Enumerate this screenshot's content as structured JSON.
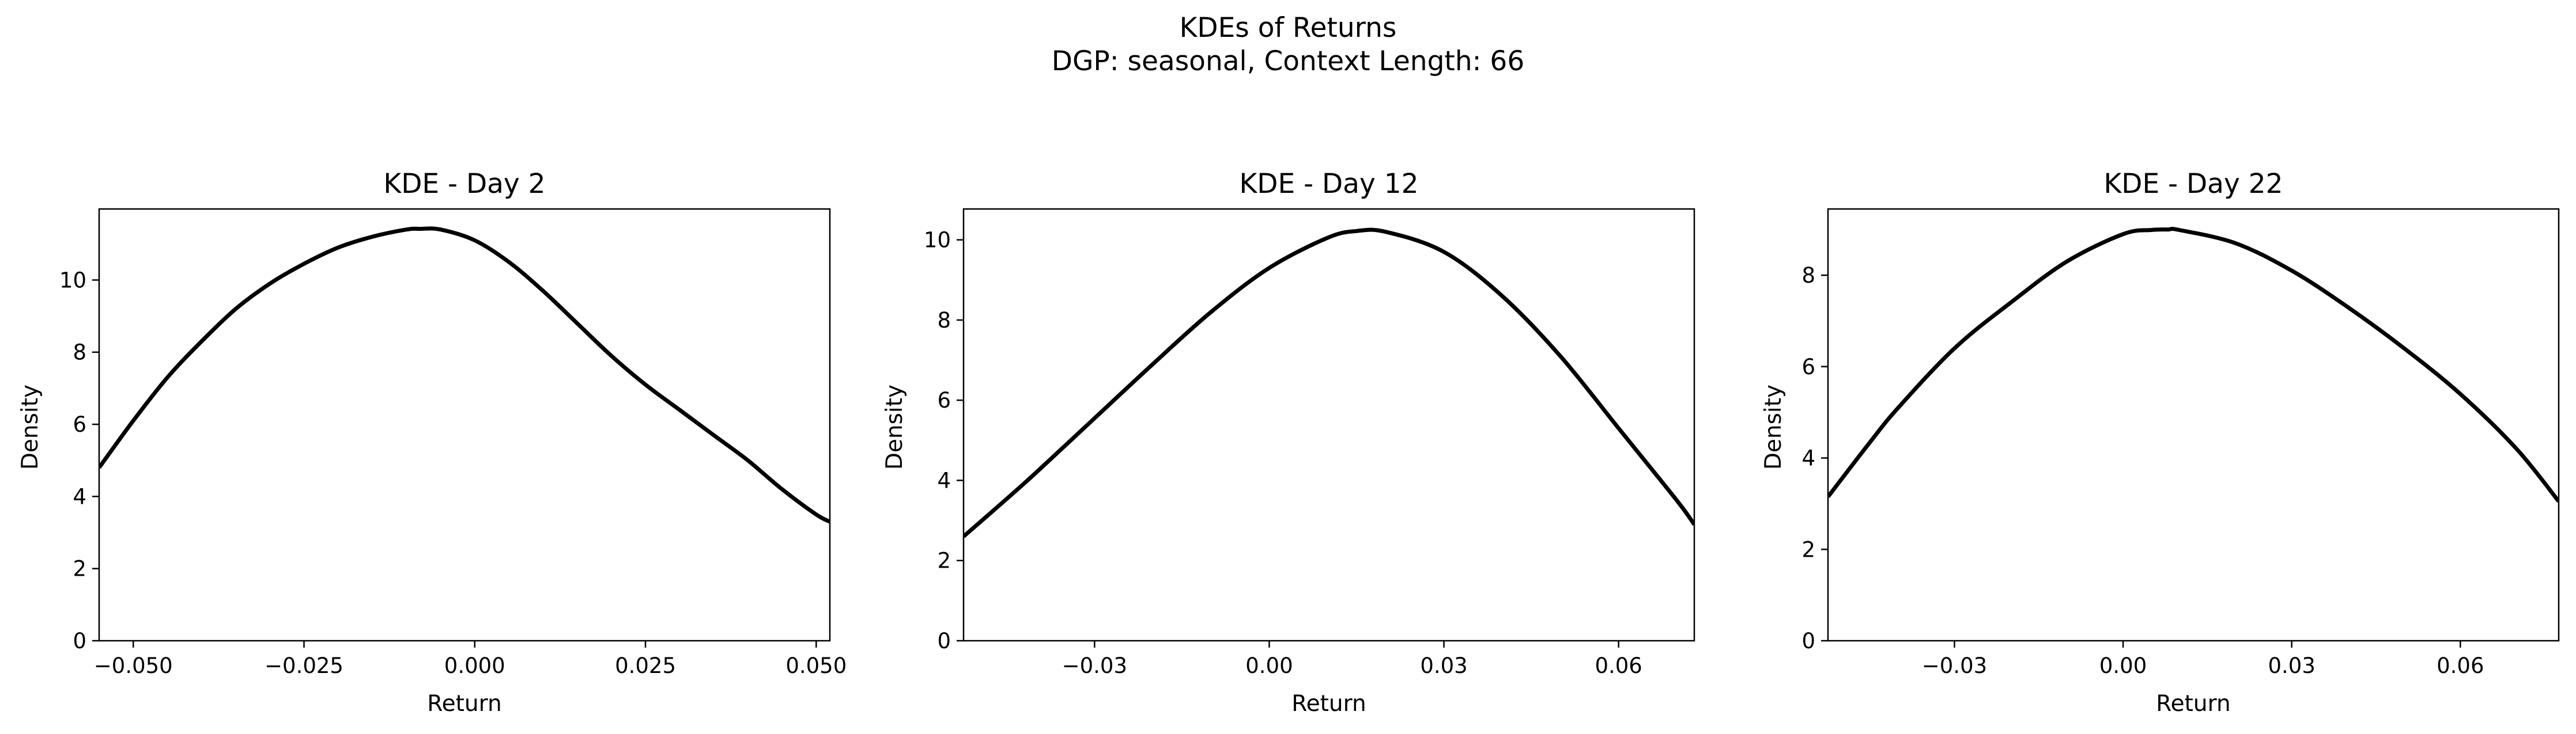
{
  "figure": {
    "title_line1": "KDEs of Returns",
    "title_line2": "DGP: seasonal, Context Length: 66"
  },
  "colors": {
    "line": "#000000",
    "axes": "#000000",
    "background": "#ffffff"
  },
  "chart_data": [
    {
      "type": "line",
      "title": "KDE - Day 2",
      "xlabel": "Return",
      "ylabel": "Density",
      "xlim": [
        -0.055,
        0.052
      ],
      "ylim": [
        0,
        11.97
      ],
      "xticks": [
        -0.05,
        -0.025,
        0.0,
        0.025,
        0.05
      ],
      "xtick_labels": [
        "−0.050",
        "−0.025",
        "0.000",
        "0.025",
        "0.050"
      ],
      "yticks": [
        0,
        2,
        4,
        6,
        8,
        10
      ],
      "ytick_labels": [
        "0",
        "2",
        "4",
        "6",
        "8",
        "10"
      ],
      "grid": false,
      "series": [
        {
          "x": [
            -0.055,
            -0.05,
            -0.045,
            -0.04,
            -0.035,
            -0.03,
            -0.025,
            -0.02,
            -0.015,
            -0.01,
            -0.008,
            -0.005,
            0.0,
            0.005,
            0.01,
            0.015,
            0.02,
            0.025,
            0.03,
            0.035,
            0.04,
            0.045,
            0.05,
            0.052
          ],
          "y": [
            4.8,
            6.1,
            7.3,
            8.3,
            9.2,
            9.9,
            10.45,
            10.9,
            11.2,
            11.4,
            11.42,
            11.4,
            11.1,
            10.5,
            9.7,
            8.8,
            7.9,
            7.1,
            6.4,
            5.7,
            5.0,
            4.2,
            3.5,
            3.3
          ]
        }
      ]
    },
    {
      "type": "line",
      "title": "KDE - Day 12",
      "xlabel": "Return",
      "ylabel": "Density",
      "xlim": [
        -0.0525,
        0.073
      ],
      "ylim": [
        0,
        10.77
      ],
      "xticks": [
        -0.03,
        0.0,
        0.03,
        0.06
      ],
      "xtick_labels": [
        "−0.03",
        "0.00",
        "0.03",
        "0.06"
      ],
      "yticks": [
        0,
        2,
        4,
        6,
        8,
        10
      ],
      "ytick_labels": [
        "0",
        "2",
        "4",
        "6",
        "8",
        "10"
      ],
      "grid": false,
      "series": [
        {
          "x": [
            -0.0525,
            -0.045,
            -0.04,
            -0.03,
            -0.02,
            -0.01,
            0.0,
            0.01,
            0.015,
            0.02,
            0.03,
            0.04,
            0.05,
            0.06,
            0.07,
            0.073
          ],
          "y": [
            2.6,
            3.55,
            4.2,
            5.55,
            6.9,
            8.2,
            9.3,
            10.05,
            10.22,
            10.2,
            9.7,
            8.6,
            7.1,
            5.3,
            3.5,
            2.9
          ]
        }
      ]
    },
    {
      "type": "line",
      "title": "KDE - Day 22",
      "xlabel": "Return",
      "ylabel": "Density",
      "xlim": [
        -0.0525,
        0.0775
      ],
      "ylim": [
        0,
        9.45
      ],
      "xticks": [
        -0.03,
        0.0,
        0.03,
        0.06
      ],
      "xtick_labels": [
        "−0.03",
        "0.00",
        "0.03",
        "0.06"
      ],
      "yticks": [
        0,
        2,
        4,
        6,
        8
      ],
      "ytick_labels": [
        "0",
        "2",
        "4",
        "6",
        "8"
      ],
      "grid": false,
      "series": [
        {
          "x": [
            -0.0525,
            -0.045,
            -0.04,
            -0.03,
            -0.02,
            -0.01,
            0.0,
            0.005,
            0.008,
            0.01,
            0.02,
            0.03,
            0.04,
            0.05,
            0.06,
            0.07,
            0.0775
          ],
          "y": [
            3.15,
            4.35,
            5.1,
            6.4,
            7.4,
            8.3,
            8.9,
            8.99,
            9.0,
            8.99,
            8.7,
            8.1,
            7.3,
            6.4,
            5.4,
            4.2,
            3.05
          ]
        }
      ]
    }
  ]
}
